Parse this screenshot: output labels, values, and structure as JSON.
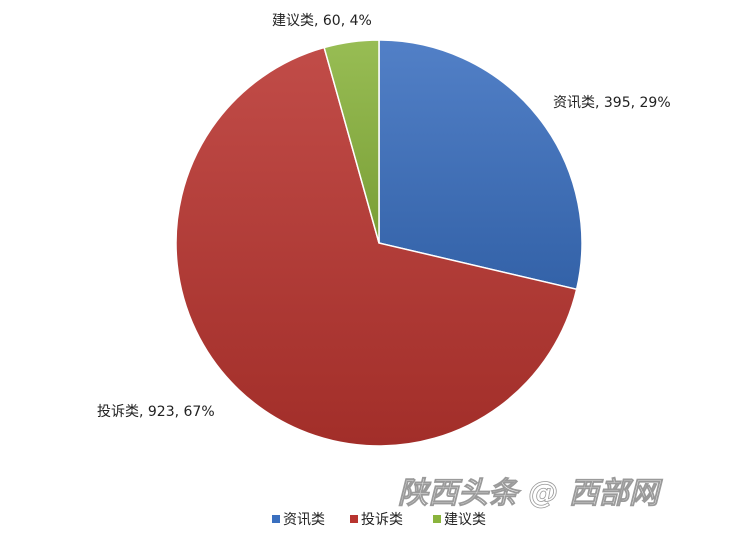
{
  "chart_data": {
    "type": "pie",
    "categories": [
      "资讯类",
      "投诉类",
      "建议类"
    ],
    "values": [
      395,
      923,
      60
    ],
    "percent_labels": [
      "29%",
      "67%",
      "4%"
    ],
    "colors": [
      "#3a6fbf",
      "#b8342f",
      "#8ab43d"
    ],
    "start": "12 o'clock",
    "direction": "clockwise",
    "legend": "bottom"
  },
  "watermark": "陕西头条 @ 西部网"
}
